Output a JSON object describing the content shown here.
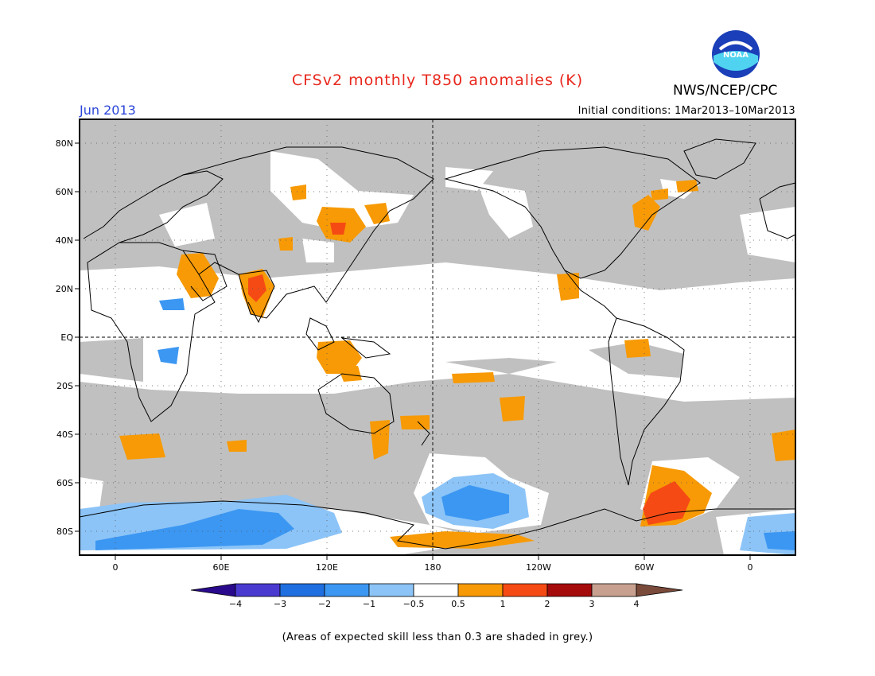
{
  "header": {
    "title": "CFSv2 monthly T850 anomalies (K)",
    "month": "Jun 2013",
    "agency": "NWS/NCEP/CPC",
    "initial_conditions": "Initial conditions: 1Mar2013–10Mar2013",
    "logo_text": "NOAA"
  },
  "map": {
    "lat_labels": [
      "80N",
      "60N",
      "40N",
      "20N",
      "EQ",
      "20S",
      "40S",
      "60S",
      "80S"
    ],
    "lon_labels": [
      "0",
      "60E",
      "120E",
      "180",
      "120W",
      "60W",
      "0"
    ],
    "grey_meaning": "skill < 0.3"
  },
  "colorbar": {
    "labels": [
      "−4",
      "−3",
      "−2",
      "−1",
      "−0.5",
      "0.5",
      "1",
      "2",
      "3",
      "4"
    ],
    "colors": [
      "#2a0a8c",
      "#4a3ad0",
      "#1f6fe0",
      "#3c97f2",
      "#8cc4f7",
      "#ffffff",
      "#f79a05",
      "#f64a14",
      "#a50b0b",
      "#c7a090",
      "#7a4a3a"
    ]
  },
  "footnote": "(Areas of expected skill less than 0.3 are shaded in grey.)"
}
